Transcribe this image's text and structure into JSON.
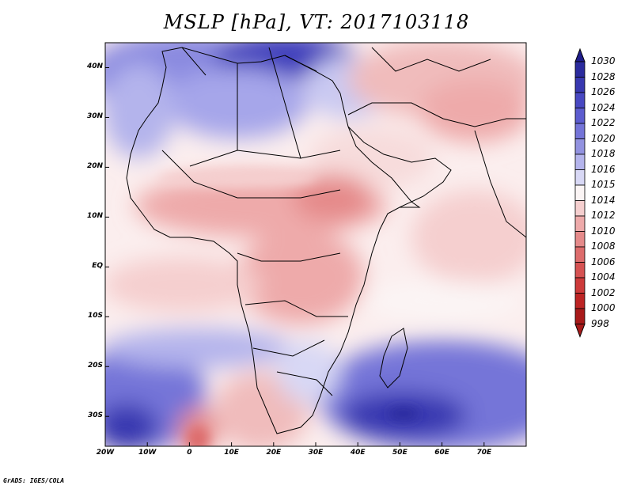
{
  "title": "MSLP [hPa], VT: 2017103118",
  "credit": "GrADS: IGES/COLA",
  "map": {
    "variable": "Mean sea level pressure",
    "units": "hPa",
    "valid_time": "2017103118",
    "lon_range": [
      -20,
      80
    ],
    "lat_range": [
      -36,
      45
    ],
    "lat_ticks": [
      {
        "lat": 40,
        "label": "40N"
      },
      {
        "lat": 30,
        "label": "30N"
      },
      {
        "lat": 20,
        "label": "20N"
      },
      {
        "lat": 10,
        "label": "10N"
      },
      {
        "lat": 0,
        "label": "EQ"
      },
      {
        "lat": -10,
        "label": "10S"
      },
      {
        "lat": -20,
        "label": "20S"
      },
      {
        "lat": -30,
        "label": "30S"
      }
    ],
    "lon_ticks": [
      {
        "lon": -20,
        "label": "20W"
      },
      {
        "lon": -10,
        "label": "10W"
      },
      {
        "lon": 0,
        "label": "0"
      },
      {
        "lon": 10,
        "label": "10E"
      },
      {
        "lon": 20,
        "label": "20E"
      },
      {
        "lon": 30,
        "label": "30E"
      },
      {
        "lon": 40,
        "label": "40E"
      },
      {
        "lon": 50,
        "label": "50E"
      },
      {
        "lon": 60,
        "label": "60E"
      },
      {
        "lon": 70,
        "label": "70E"
      }
    ]
  },
  "colorbar": {
    "levels": [
      "1030",
      "1028",
      "1026",
      "1024",
      "1022",
      "1020",
      "1018",
      "1016",
      "1015",
      "1014",
      "1012",
      "1010",
      "1008",
      "1006",
      "1004",
      "1002",
      "1000",
      "998"
    ],
    "colors": [
      "#1f1d8a",
      "#2b2b9e",
      "#3838b0",
      "#4848c2",
      "#5c5ccf",
      "#7474d8",
      "#9292e0",
      "#b4b4ec",
      "#d8d8f5",
      "#fbf5f5",
      "#f5cfcf",
      "#eeaaaa",
      "#e58a8a",
      "#dd6c6c",
      "#d65252",
      "#cd3a3a",
      "#bd2424",
      "#a81a1a"
    ]
  }
}
